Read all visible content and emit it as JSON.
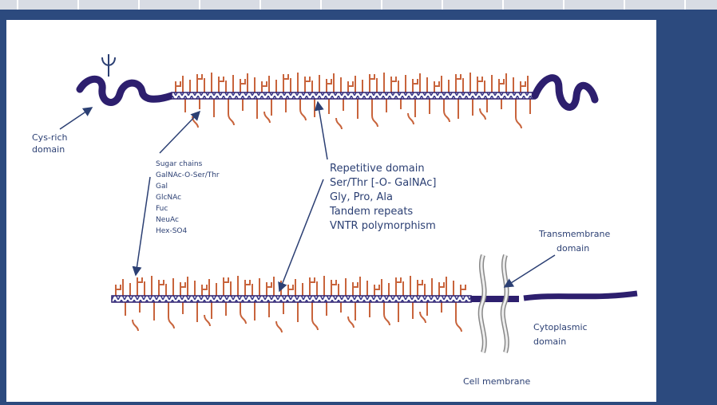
{
  "labels": {
    "cys_rich": [
      "Cys-rich",
      "domain"
    ],
    "sugar_chains": [
      "Sugar chains",
      "GalNAc-O-Ser/Thr",
      "Gal",
      "GlcNAc",
      "Fuc",
      "NeuAc",
      "Hex-SO4"
    ],
    "repetitive": [
      "Repetitive domain",
      "Ser/Thr [-O- GalNAc]",
      "Gly, Pro, Ala",
      "Tandem repeats",
      "VNTR polymorphism"
    ],
    "transmembrane": [
      "Transmembrane",
      "domain"
    ],
    "cytoplasmic": [
      "Cytoplasmic",
      "domain"
    ],
    "cell_membrane": "Cell membrane"
  }
}
